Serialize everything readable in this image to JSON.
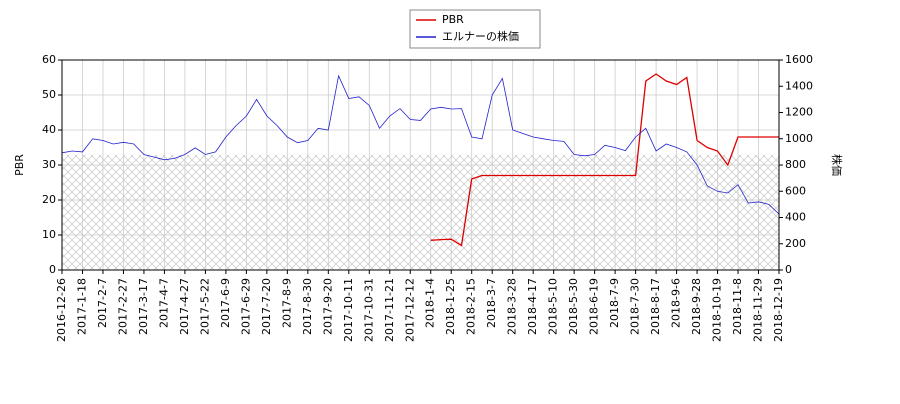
{
  "chart_data": {
    "type": "line",
    "categories": [
      "2016-12-26",
      null,
      "2017-1-18",
      null,
      "2017-2-7",
      null,
      "2017-2-27",
      null,
      "2017-3-17",
      null,
      "2017-4-7",
      null,
      "2017-4-27",
      null,
      "2017-5-22",
      null,
      "2017-6-9",
      null,
      "2017-6-29",
      null,
      "2017-7-20",
      null,
      "2017-8-9",
      null,
      "2017-8-30",
      null,
      "2017-9-20",
      null,
      "2017-10-11",
      null,
      "2017-10-31",
      null,
      "2017-11-21",
      null,
      "2017-12-12",
      null,
      "2018-1-4",
      null,
      "2018-1-25",
      null,
      "2018-2-15",
      null,
      "2018-3-7",
      null,
      "2018-3-28",
      null,
      "2018-4-17",
      null,
      "2018-5-10",
      null,
      "2018-5-30",
      null,
      "2018-6-19",
      null,
      "2018-7-9",
      null,
      "2018-7-30",
      null,
      "2018-8-17",
      null,
      "2018-9-6",
      null,
      "2018-9-28",
      null,
      "2018-10-19",
      null,
      "2018-11-8",
      null,
      "2018-11-29",
      null,
      "2018-12-19"
    ],
    "series": [
      {
        "name": "PBR",
        "color": "#dd0000",
        "axis": "y",
        "values": [
          null,
          null,
          null,
          null,
          null,
          null,
          null,
          null,
          null,
          null,
          null,
          null,
          null,
          null,
          null,
          null,
          null,
          null,
          null,
          null,
          null,
          null,
          null,
          null,
          null,
          null,
          null,
          null,
          null,
          null,
          null,
          null,
          null,
          null,
          null,
          null,
          8.5,
          8.7,
          8.8,
          7.0,
          26,
          27,
          27,
          27,
          27,
          27,
          27,
          27,
          27,
          27,
          27,
          27,
          27,
          27,
          27,
          27,
          27,
          54,
          56,
          54,
          53,
          55,
          37,
          35,
          34,
          30,
          38,
          38,
          38,
          38,
          38
        ]
      },
      {
        "name": "エルナーの株価",
        "color": "#2222cc",
        "axis": "y2",
        "values": [
          893,
          907,
          900,
          1000,
          987,
          960,
          973,
          960,
          880,
          860,
          840,
          850,
          880,
          930,
          880,
          900,
          1013,
          1100,
          1173,
          1300,
          1173,
          1100,
          1013,
          970,
          987,
          1080,
          1067,
          1480,
          1307,
          1320,
          1253,
          1080,
          1173,
          1230,
          1147,
          1140,
          1227,
          1240,
          1227,
          1230,
          1013,
          1000,
          1333,
          1460,
          1067,
          1040,
          1013,
          1000,
          987,
          980,
          880,
          870,
          880,
          950,
          933,
          910,
          1013,
          1080,
          907,
          960,
          933,
          900,
          800,
          640,
          600,
          587,
          650,
          510,
          520,
          500,
          427
        ]
      }
    ],
    "y_label": "PBR",
    "y2_label": "株価",
    "ylim": [
      0,
      60
    ],
    "yticks": [
      0,
      10,
      20,
      30,
      40,
      50,
      60
    ],
    "y2lim": [
      0,
      1600
    ],
    "y2ticks": [
      0,
      200,
      400,
      600,
      800,
      1000,
      1200,
      1400,
      1600
    ],
    "grid": true
  }
}
